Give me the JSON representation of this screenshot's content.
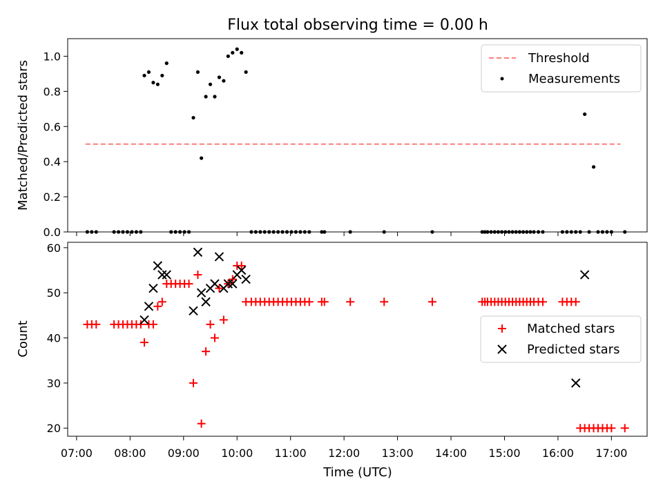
{
  "chart_data": [
    {
      "type": "scatter",
      "title": "Flux total observing time = 0.00 h",
      "ylabel": "Matched/Predicted stars",
      "xlabel": "",
      "xlim": [
        "06:50",
        "17:40"
      ],
      "ylim": [
        0,
        1.1
      ],
      "yticks": [
        "0.0",
        "0.2",
        "0.4",
        "0.6",
        "0.8",
        "1.0"
      ],
      "grid": false,
      "legend_position": "upper-right",
      "legend": [
        "Threshold",
        "Measurements"
      ],
      "threshold": {
        "name": "Threshold",
        "color": "#ff7b7b",
        "x": [
          "07:10",
          "17:10"
        ],
        "y": 0.5
      },
      "measurements": {
        "name": "Measurements",
        "color": "#000000",
        "x": [
          "07:12",
          "07:17",
          "07:22",
          "07:42",
          "07:47",
          "07:52",
          "07:57",
          "08:02",
          "08:07",
          "08:12",
          "08:16",
          "08:21",
          "08:26",
          "08:31",
          "08:36",
          "08:41",
          "08:46",
          "08:51",
          "08:56",
          "09:01",
          "09:06",
          "09:11",
          "09:16",
          "09:20",
          "09:25",
          "09:30",
          "09:35",
          "09:40",
          "09:45",
          "09:50",
          "09:55",
          "10:00",
          "10:05",
          "10:10",
          "10:16",
          "10:21",
          "10:26",
          "10:31",
          "10:36",
          "10:41",
          "10:46",
          "10:51",
          "10:56",
          "11:01",
          "11:06",
          "11:11",
          "11:16",
          "11:21",
          "11:35",
          "11:38",
          "12:07",
          "12:45",
          "13:39",
          "14:35",
          "14:38",
          "14:41",
          "14:45",
          "14:49",
          "14:53",
          "14:57",
          "15:01",
          "15:05",
          "15:09",
          "15:13",
          "15:17",
          "15:21",
          "15:25",
          "15:29",
          "15:33",
          "15:38",
          "15:43",
          "16:05",
          "16:10",
          "16:15",
          "16:20",
          "16:25",
          "16:30",
          "16:35",
          "16:40",
          "16:45",
          "16:50",
          "16:55",
          "17:00",
          "17:15"
        ],
        "y": [
          0,
          0,
          0,
          0,
          0,
          0,
          0,
          0,
          0,
          0,
          0.89,
          0.91,
          0.85,
          0.84,
          0.89,
          0.96,
          0,
          0,
          0,
          0,
          0,
          0.65,
          0.91,
          0.42,
          0.77,
          0.84,
          0.77,
          0.88,
          0.86,
          1.0,
          1.02,
          1.04,
          1.02,
          0.91,
          0,
          0,
          0,
          0,
          0,
          0,
          0,
          0,
          0,
          0,
          0,
          0,
          0,
          0,
          0,
          0,
          0,
          0,
          0,
          0,
          0,
          0,
          0,
          0,
          0,
          0,
          0,
          0,
          0,
          0,
          0,
          0,
          0,
          0,
          0,
          0,
          0,
          0,
          0,
          0,
          0,
          0,
          0.67,
          0,
          0.37,
          0,
          0,
          0,
          0,
          0
        ]
      }
    },
    {
      "type": "scatter",
      "title": "",
      "xlabel": "Time (UTC)",
      "ylabel": "Count",
      "xlim": [
        "06:50",
        "17:40"
      ],
      "ylim": [
        18.2,
        61.2
      ],
      "xticks": [
        "07:00",
        "08:00",
        "09:00",
        "10:00",
        "11:00",
        "12:00",
        "13:00",
        "14:00",
        "15:00",
        "16:00",
        "17:00"
      ],
      "yticks": [
        "20",
        "30",
        "40",
        "50",
        "60"
      ],
      "grid": false,
      "legend_position": "center-right",
      "legend": [
        "Matched stars",
        "Predicted stars"
      ],
      "series": [
        {
          "name": "Matched stars",
          "marker": "+",
          "color": "#ff0000",
          "x": [
            "07:12",
            "07:17",
            "07:22",
            "07:42",
            "07:47",
            "07:52",
            "07:57",
            "08:02",
            "08:07",
            "08:12",
            "08:16",
            "08:21",
            "08:26",
            "08:31",
            "08:36",
            "08:41",
            "08:46",
            "08:51",
            "08:56",
            "09:01",
            "09:06",
            "09:11",
            "09:16",
            "09:20",
            "09:25",
            "09:30",
            "09:35",
            "09:40",
            "09:45",
            "09:50",
            "09:55",
            "10:00",
            "10:05",
            "10:10",
            "10:16",
            "10:21",
            "10:26",
            "10:31",
            "10:36",
            "10:41",
            "10:46",
            "10:51",
            "10:56",
            "11:01",
            "11:06",
            "11:11",
            "11:16",
            "11:21",
            "11:35",
            "11:38",
            "12:07",
            "12:45",
            "13:39",
            "14:35",
            "14:38",
            "14:41",
            "14:45",
            "14:49",
            "14:53",
            "14:57",
            "15:01",
            "15:05",
            "15:09",
            "15:13",
            "15:17",
            "15:21",
            "15:25",
            "15:29",
            "15:33",
            "15:38",
            "15:43",
            "16:05",
            "16:10",
            "16:15",
            "16:20",
            "16:25",
            "16:30",
            "16:35",
            "16:40",
            "16:45",
            "16:50",
            "16:55",
            "17:00",
            "17:15"
          ],
          "y": [
            43,
            43,
            43,
            43,
            43,
            43,
            43,
            43,
            43,
            43,
            39,
            43,
            43,
            47,
            48,
            52,
            52,
            52,
            52,
            52,
            52,
            30,
            54,
            21,
            37,
            43,
            40,
            51,
            44,
            52,
            53,
            56,
            56,
            48,
            48,
            48,
            48,
            48,
            48,
            48,
            48,
            48,
            48,
            48,
            48,
            48,
            48,
            48,
            48,
            48,
            48,
            48,
            48,
            48,
            48,
            48,
            48,
            48,
            48,
            48,
            48,
            48,
            48,
            48,
            48,
            48,
            48,
            48,
            48,
            48,
            48,
            48,
            48,
            48,
            48,
            20,
            20,
            20,
            20,
            20,
            20,
            20,
            20,
            20
          ]
        },
        {
          "name": "Predicted stars",
          "marker": "x",
          "color": "#000000",
          "x": [
            "08:16",
            "08:21",
            "08:26",
            "08:31",
            "08:36",
            "08:41",
            "09:11",
            "09:16",
            "09:20",
            "09:25",
            "09:30",
            "09:35",
            "09:40",
            "09:45",
            "09:50",
            "09:55",
            "10:00",
            "10:05",
            "10:10",
            "16:20",
            "16:30"
          ],
          "y": [
            44,
            47,
            51,
            56,
            54,
            54,
            46,
            59,
            50,
            48,
            51,
            52,
            58,
            51,
            52,
            52,
            54,
            55,
            53,
            30,
            54
          ]
        }
      ]
    }
  ]
}
